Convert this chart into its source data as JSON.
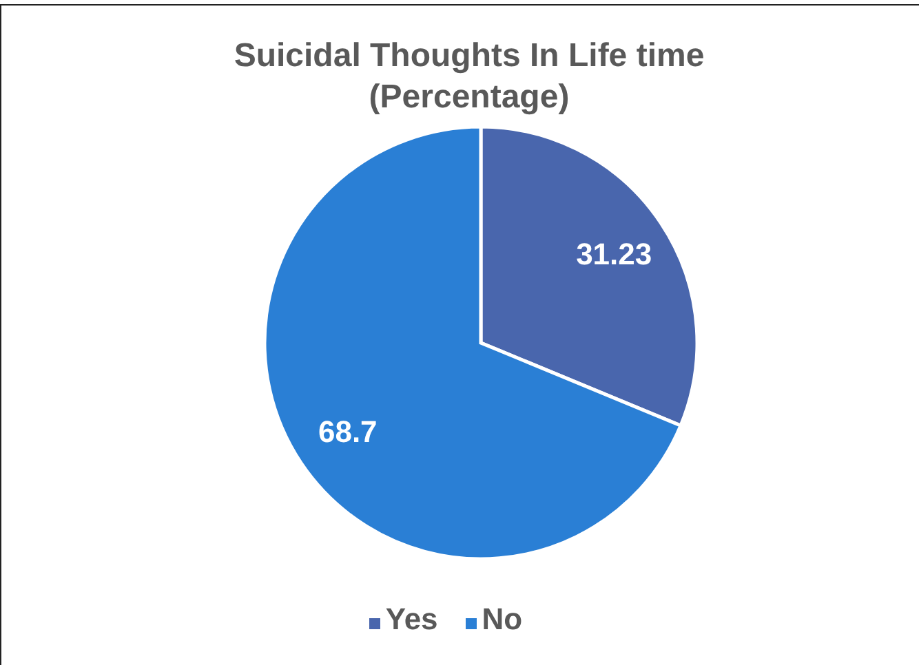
{
  "chart_data": {
    "type": "pie",
    "title": "Suicidal Thoughts In Life time (Percentage)",
    "categories": [
      "Yes",
      "No"
    ],
    "values": [
      31.23,
      68.7
    ],
    "colors": [
      "#4966ad",
      "#2a7fd5"
    ],
    "data_labels": true,
    "legend": "bottom"
  }
}
